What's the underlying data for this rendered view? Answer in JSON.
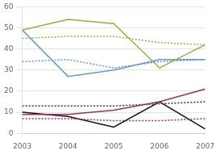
{
  "chart_data": {
    "type": "line",
    "x": [
      2003,
      2004,
      2005,
      2006,
      2007
    ],
    "series": [
      {
        "color": "#9aaa44",
        "line_style": "dotted",
        "values": [
          45,
          46,
          46,
          43,
          42
        ]
      },
      {
        "color": "#9aaa44",
        "line_style": "solid",
        "values": [
          49,
          54,
          52,
          31,
          42
        ]
      },
      {
        "color": "#6699cc",
        "line_style": "dotted",
        "values": [
          34,
          35,
          31,
          34,
          35
        ]
      },
      {
        "color": "#6699cc",
        "line_style": "solid",
        "values": [
          49,
          27,
          30,
          35,
          35
        ]
      },
      {
        "color": "#993355",
        "line_style": "solid",
        "values": [
          9,
          9,
          11,
          15,
          21
        ]
      },
      {
        "color": "#993355",
        "line_style": "dotted",
        "values": [
          7,
          7,
          6,
          6,
          7
        ]
      },
      {
        "color": "#333333",
        "line_style": "dotted",
        "values": [
          13,
          13,
          13,
          14,
          15
        ]
      },
      {
        "color": "#111111",
        "line_style": "solid",
        "values": [
          10,
          8,
          3,
          15,
          2
        ]
      }
    ],
    "xlim": [
      2003,
      2007
    ],
    "xticks": [
      2003,
      2004,
      2005,
      2006,
      2007
    ],
    "ylim": [
      0,
      60
    ],
    "yticks": [
      0,
      10,
      20,
      30,
      40,
      50,
      60
    ],
    "grid": "y"
  }
}
